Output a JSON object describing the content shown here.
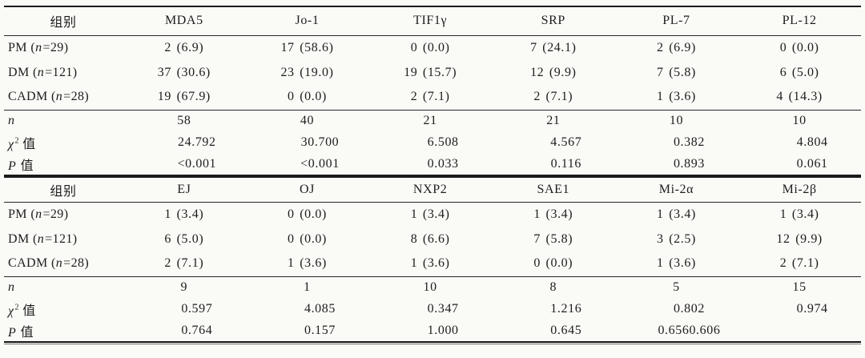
{
  "t1": {
    "header": [
      "组别",
      "MDA5",
      "Jo-1",
      "TIF1γ",
      "SRP",
      "PL-7",
      "PL-12"
    ],
    "groups": [
      {
        "label": {
          "pre": "PM (",
          "var": "n",
          "sup": "",
          "post": "=29)"
        },
        "values": [
          "2 (6.9)",
          "17 (58.6)",
          "0 (0.0)",
          "7 (24.1)",
          "2 (6.9)",
          "0 (0.0)"
        ]
      },
      {
        "label": {
          "pre": "DM (",
          "var": "n",
          "sup": "",
          "post": "=121)"
        },
        "values": [
          "37 (30.6)",
          "23 (19.0)",
          "19 (15.7)",
          "12 (9.9)",
          "7 (5.8)",
          "6 (5.0)"
        ]
      },
      {
        "label": {
          "pre": "CADM (",
          "var": "n",
          "sup": "",
          "post": "=28)"
        },
        "values": [
          "19 (67.9)",
          "0 (0.0)",
          "2 (7.1)",
          "2 (7.1)",
          "1 (3.6)",
          "4 (14.3)"
        ]
      }
    ],
    "stats": [
      {
        "label": {
          "pre": "",
          "var": "n",
          "sup": "",
          "post": ""
        },
        "values": [
          "58",
          "40",
          "21",
          "21",
          "10",
          "10"
        ]
      },
      {
        "label": {
          "pre": "",
          "var": "χ",
          "sup": "2",
          "post": " 值"
        },
        "values": [
          "24.792",
          "30.700",
          "6.508",
          "4.567",
          "0.382",
          "4.804"
        ]
      },
      {
        "label": {
          "pre": "",
          "var": "P",
          "sup": "",
          "post": " 值"
        },
        "values": [
          "<0.001",
          "<0.001",
          "0.033",
          "0.116",
          "0.893",
          "0.061"
        ]
      }
    ]
  },
  "t2": {
    "header": [
      "组别",
      "EJ",
      "OJ",
      "NXP2",
      "SAE1",
      "Mi-2α",
      "Mi-2β"
    ],
    "groups": [
      {
        "label": {
          "pre": "PM (",
          "var": "n",
          "sup": "",
          "post": "=29)"
        },
        "values": [
          "1 (3.4)",
          "0 (0.0)",
          "1 (3.4)",
          "1 (3.4)",
          "1 (3.4)",
          "1 (3.4)"
        ]
      },
      {
        "label": {
          "pre": "DM (",
          "var": "n",
          "sup": "",
          "post": "=121)"
        },
        "values": [
          "6 (5.0)",
          "0 (0.0)",
          "8 (6.6)",
          "7 (5.8)",
          "3 (2.5)",
          "12 (9.9)"
        ]
      },
      {
        "label": {
          "pre": "CADM (",
          "var": "n",
          "sup": "",
          "post": "=28)"
        },
        "values": [
          "2 (7.1)",
          "1 (3.6)",
          "1 (3.6)",
          "0 (0.0)",
          "1 (3.6)",
          "2 (7.1)"
        ]
      }
    ],
    "stats": [
      {
        "label": {
          "pre": "",
          "var": "n",
          "sup": "",
          "post": ""
        },
        "values": [
          "9",
          "1",
          "10",
          "8",
          "5",
          "15"
        ]
      },
      {
        "label": {
          "pre": "",
          "var": "χ",
          "sup": "2",
          "post": " 值"
        },
        "values": [
          "0.597",
          "4.085",
          "0.347",
          "1.216",
          "0.802",
          "0.974"
        ]
      },
      {
        "label": {
          "pre": "",
          "var": "P",
          "sup": "",
          "post": " 值"
        },
        "values": [
          "0.764",
          "0.157",
          "1.000",
          "0.645",
          "0.6560.606",
          ""
        ]
      }
    ]
  }
}
